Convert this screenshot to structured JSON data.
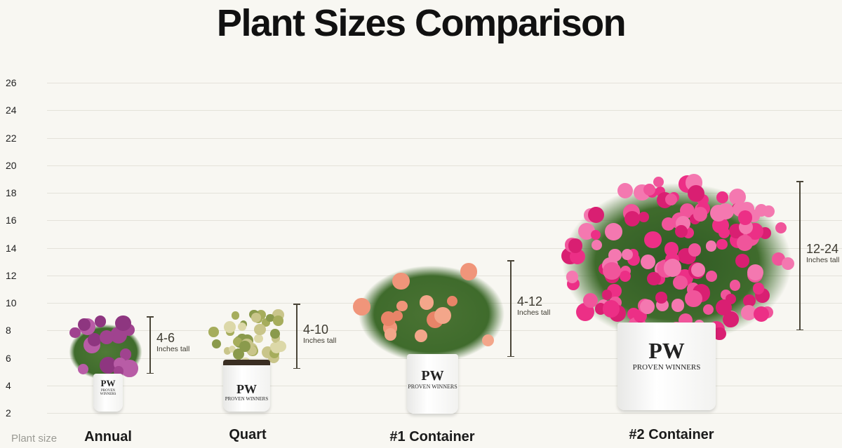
{
  "title": "Plant Sizes Comparison",
  "chart_data": {
    "type": "range",
    "title": "Plant Sizes Comparison",
    "xlabel": "Plant size",
    "ylabel": "",
    "yticks": [
      26,
      24,
      22,
      20,
      18,
      16,
      14,
      12,
      10,
      8,
      6,
      4,
      2
    ],
    "ylim": [
      2,
      26
    ],
    "grid": true,
    "categories": [
      "Annual",
      "Quart",
      "#1 Container",
      "#2 Container"
    ],
    "ranges": [
      {
        "label": "4-6",
        "unit": "Inches tall",
        "low": 4,
        "high": 6
      },
      {
        "label": "4-10",
        "unit": "Inches tall",
        "low": 4,
        "high": 10
      },
      {
        "label": "4-12",
        "unit": "Inches tall",
        "low": 4,
        "high": 12
      },
      {
        "label": "12-24",
        "unit": "Inches tall",
        "low": 12,
        "high": 24
      }
    ]
  },
  "pot_logo": {
    "mark": "PW",
    "brand": "PROVEN WINNERS"
  },
  "colors": {
    "background": "#f8f7f2",
    "annual": "#a0438f",
    "quart": "#c9c58a",
    "container1": "#f0957a",
    "container2": "#ec2f86",
    "leaf": "#3f6b2c"
  }
}
